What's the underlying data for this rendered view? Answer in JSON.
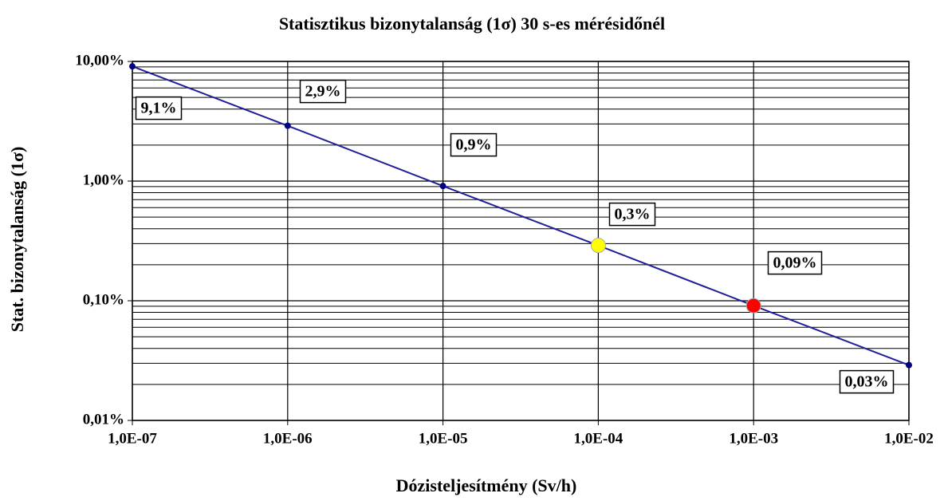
{
  "chart_data": {
    "type": "line",
    "title": "Statisztikus  bizonytalanság  (1σ) 30 s-es mérésidőnél",
    "x_label": "Dózisteljesítmény (Sv/h)",
    "y_label": "Stat. bizonytalanság  (1σ)",
    "x": [
      1e-07,
      1e-06,
      1e-05,
      0.0001,
      0.001,
      0.01
    ],
    "series": [
      {
        "name": "Stat. bizonytalanság",
        "color": "#1f1f9c",
        "marker_colors": [
          "#000080",
          "#000080",
          "#000080",
          "#ffff00",
          "#ff0000",
          "#000080"
        ],
        "values": [
          9.1,
          2.9,
          0.91,
          0.29,
          0.091,
          0.029
        ],
        "value_labels": [
          "9,1%",
          "2,9%",
          "0,9%",
          "0,3%",
          "0,09%",
          "0,03%"
        ]
      }
    ],
    "xlim": [
      1e-07,
      0.01
    ],
    "xticks": [
      {
        "value": 1e-07,
        "label": "1,0E-07"
      },
      {
        "value": 1e-06,
        "label": "1,0E-06"
      },
      {
        "value": 1e-05,
        "label": "1,0E-05"
      },
      {
        "value": 0.0001,
        "label": "1,0E-04"
      },
      {
        "value": 0.001,
        "label": "1,0E-03"
      },
      {
        "value": 0.01,
        "label": "1,0E-02"
      }
    ],
    "ylim": [
      0.01,
      10
    ],
    "yticks": [
      {
        "value": 0.01,
        "label": "0,01%"
      },
      {
        "value": 0.1,
        "label": "0,10%"
      },
      {
        "value": 1,
        "label": "1,00%"
      },
      {
        "value": 10,
        "label": "10,00%"
      }
    ],
    "yminorticks": [
      0.02,
      0.03,
      0.04,
      0.05,
      0.06,
      0.07,
      0.08,
      0.09,
      0.2,
      0.3,
      0.4,
      0.5,
      0.6,
      0.7,
      0.8,
      0.9,
      2,
      3,
      4,
      5,
      6,
      7,
      8,
      9
    ],
    "xscale": "log",
    "yscale": "log",
    "grid": true
  }
}
